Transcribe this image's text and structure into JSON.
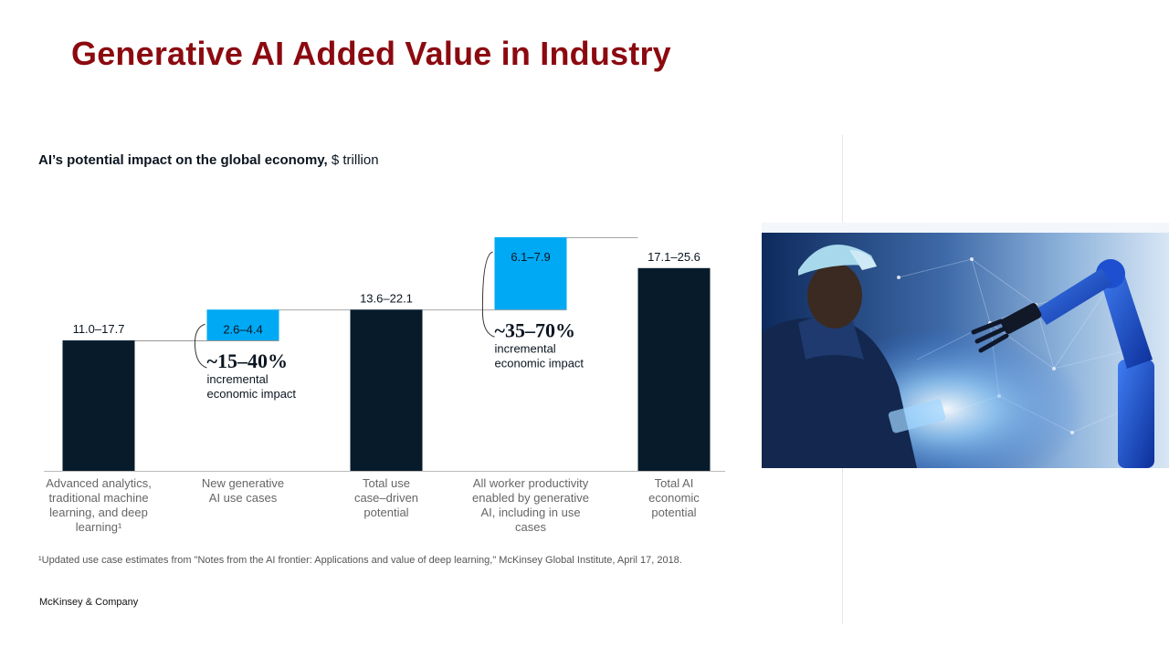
{
  "slide": {
    "title": "Generative AI Added Value in Industry"
  },
  "chart_heading": {
    "bold": "AI’s potential impact on the global economy,",
    "unit": " $ trillion"
  },
  "chart_data": {
    "type": "bar",
    "subtype": "waterfall",
    "categories": [
      [
        "Advanced analytics,",
        "traditional machine",
        "learning, and deep",
        "learning¹"
      ],
      [
        "New generative",
        "AI use cases"
      ],
      [
        "Total use",
        "case–driven",
        "potential"
      ],
      [
        "All worker productivity",
        "enabled by generative",
        "AI, including in use",
        "cases"
      ],
      [
        "Total AI",
        "economic",
        "potential"
      ]
    ],
    "bars": [
      {
        "label": "11.0–17.7",
        "kind": "total",
        "base": 0,
        "value": 11.0
      },
      {
        "label": "2.6–4.4",
        "kind": "increment",
        "base": 11.0,
        "value": 2.6
      },
      {
        "label": "13.6–22.1",
        "kind": "total",
        "base": 0,
        "value": 13.6
      },
      {
        "label": "6.1–7.9",
        "kind": "increment",
        "base": 13.6,
        "value": 6.1
      },
      {
        "label": "17.1–25.6",
        "kind": "total",
        "base": 0,
        "value": 17.1
      }
    ],
    "annotations": [
      {
        "bar": 1,
        "big": "~15–40%",
        "lines": [
          "incremental",
          "economic impact"
        ]
      },
      {
        "bar": 3,
        "big": "~35–70%",
        "lines": [
          "incremental",
          "economic impact"
        ]
      }
    ],
    "ylim": [
      0,
      19.7
    ],
    "colors": {
      "total": "#071b2b",
      "increment": "#00a9f4",
      "axis": "#bbbbbb",
      "connector": "#888888",
      "category_text": "#666666"
    }
  },
  "footnote": "¹Updated use case estimates from \"Notes from the AI frontier: Applications and value of deep learning,\" McKinsey Global Institute, April 17, 2018.",
  "brand": "McKinsey & Company",
  "photo": {
    "icon": "worker-with-robot-arm-illustration"
  }
}
